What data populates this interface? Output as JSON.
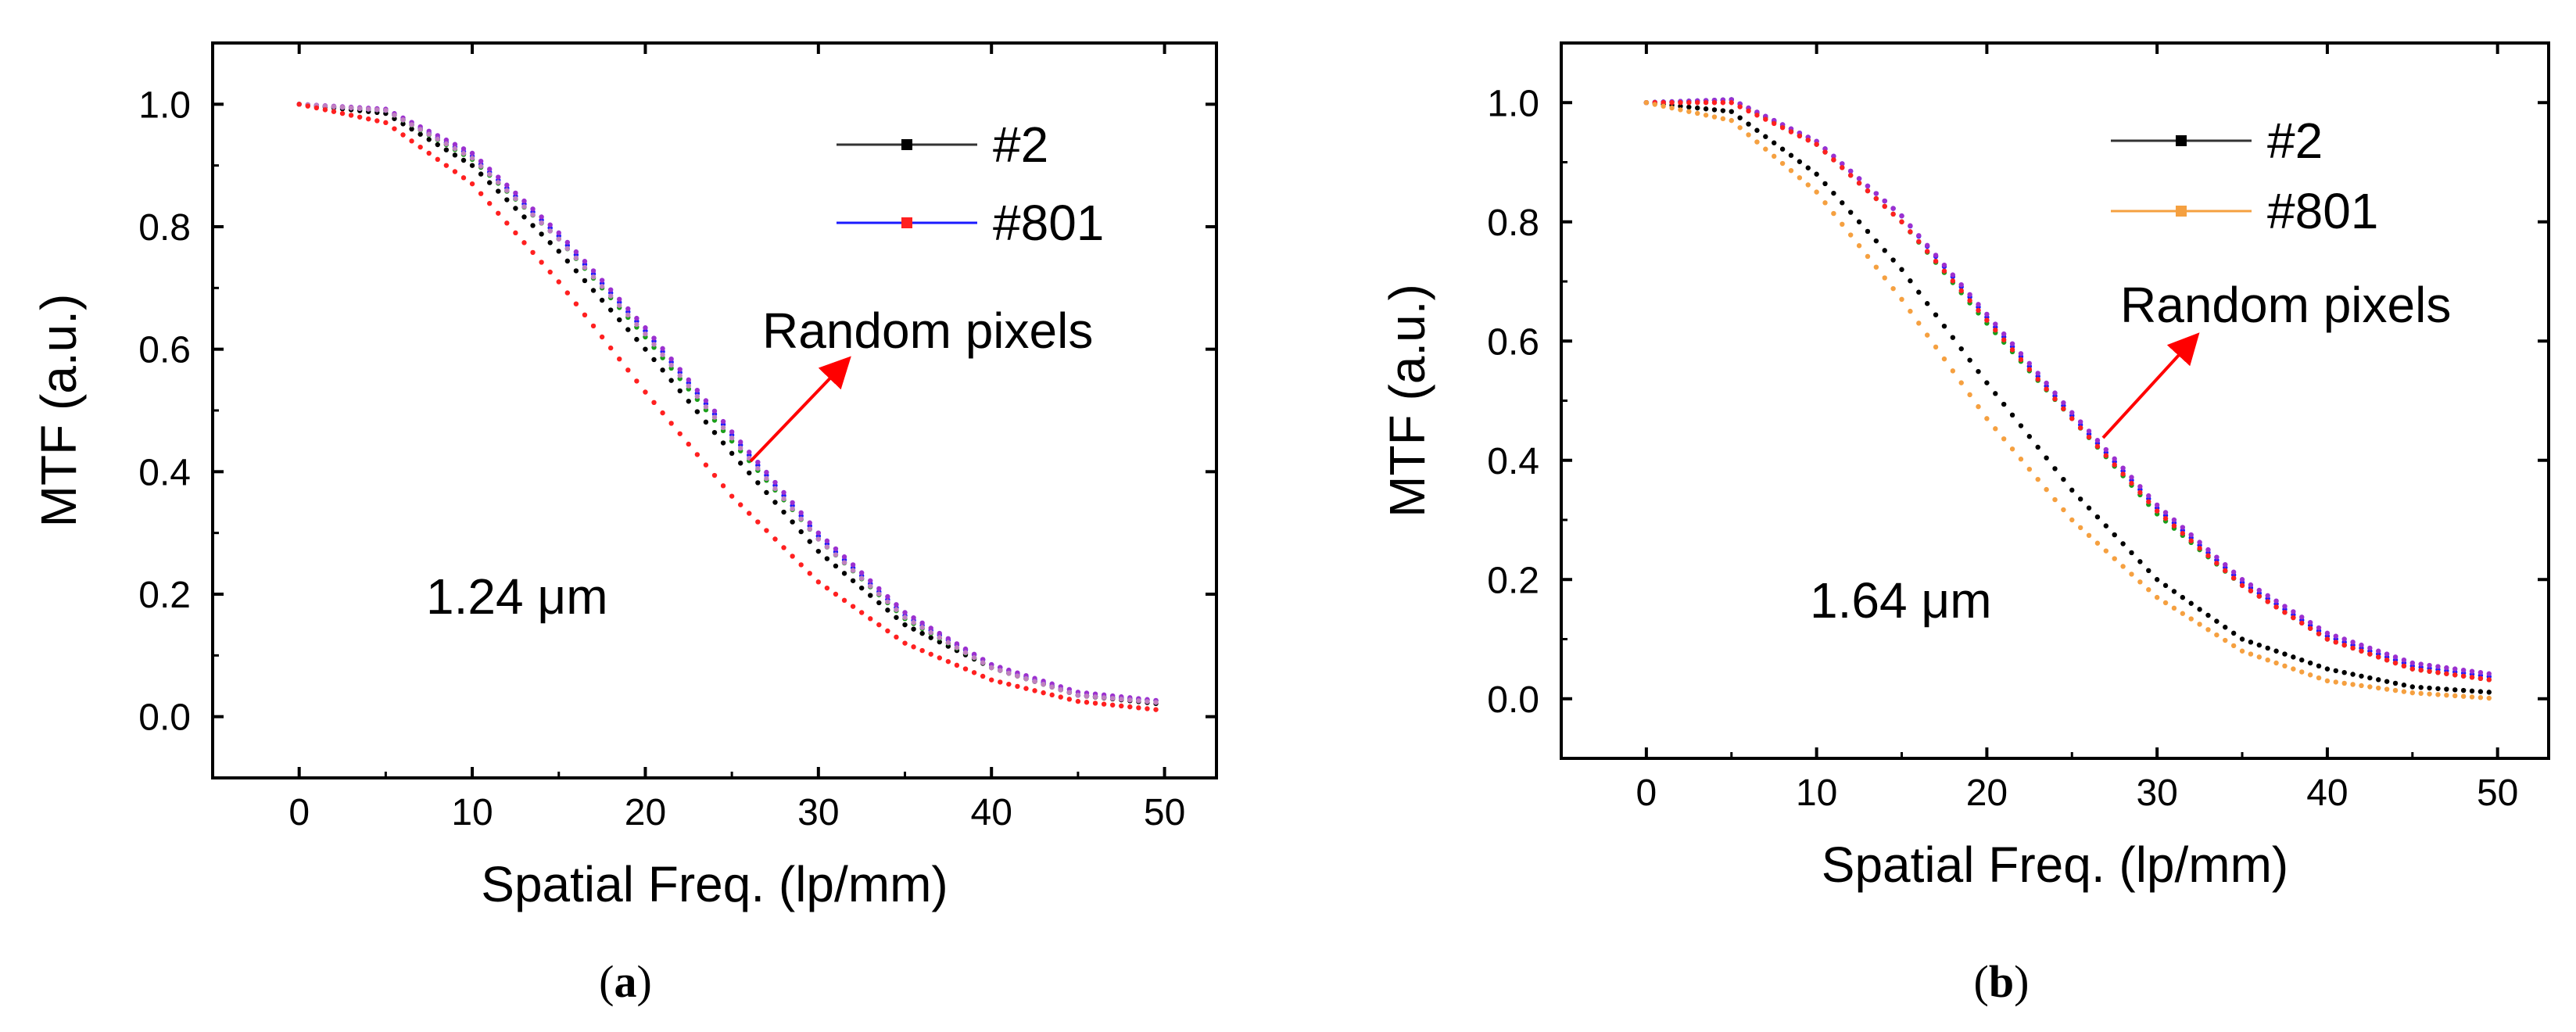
{
  "chart_data": [
    {
      "type": "scatter",
      "panel": "a",
      "caption_prefix": "(",
      "caption_letter": "a",
      "caption_suffix": ")",
      "xlabel": "Spatial Freq. (lp/mm)",
      "ylabel": "MTF (a.u.)",
      "xlim": [
        -5,
        53
      ],
      "ylim": [
        -0.1,
        1.1
      ],
      "xticks": [
        "0",
        "10",
        "20",
        "30",
        "40",
        "50"
      ],
      "yticks": [
        "0.0",
        "0.2",
        "0.4",
        "0.6",
        "0.8",
        "1.0"
      ],
      "grid": false,
      "legend_position": "top-right",
      "legend": [
        {
          "label": "#2",
          "line_color": "#333333",
          "marker_color": "#000000"
        },
        {
          "label": "#801",
          "line_color": "#1a1aff",
          "marker_color": "#ff2020"
        }
      ],
      "annotations": {
        "random_pixels": "Random pixels",
        "size_label": "1.24 μm"
      },
      "arrow_color": "#ff0000",
      "series": [
        {
          "name": "#2",
          "color": "#000000",
          "x": [
            0,
            5,
            10,
            15,
            20,
            25,
            30,
            35,
            40,
            45,
            50
          ],
          "y": [
            1.0,
            0.985,
            0.9,
            0.76,
            0.6,
            0.43,
            0.27,
            0.15,
            0.08,
            0.035,
            0.02
          ]
        },
        {
          "color": "#1a9e1a",
          "x": [
            0,
            5,
            10,
            15,
            20,
            25,
            30,
            35,
            40,
            45,
            50
          ],
          "y": [
            1.0,
            0.99,
            0.91,
            0.78,
            0.62,
            0.45,
            0.29,
            0.16,
            0.08,
            0.035,
            0.025
          ]
        },
        {
          "color": "#1a1aff",
          "x": [
            0,
            5,
            10,
            15,
            20,
            25,
            30,
            35,
            40,
            45,
            50
          ],
          "y": [
            1.0,
            0.99,
            0.915,
            0.785,
            0.63,
            0.46,
            0.295,
            0.165,
            0.085,
            0.035,
            0.025
          ]
        },
        {
          "color": "#9b30d0",
          "x": [
            0,
            5,
            10,
            15,
            20,
            25,
            30,
            35,
            40,
            45,
            50
          ],
          "y": [
            1.0,
            0.992,
            0.92,
            0.79,
            0.635,
            0.465,
            0.3,
            0.17,
            0.085,
            0.04,
            0.025
          ]
        },
        {
          "color": "#c080c0",
          "x": [
            0,
            5,
            10,
            15,
            20,
            25,
            30,
            35,
            40,
            45,
            50
          ],
          "y": [
            1.0,
            0.99,
            0.912,
            0.78,
            0.625,
            0.455,
            0.29,
            0.162,
            0.08,
            0.035,
            0.022
          ]
        },
        {
          "name": "#801",
          "color": "#ff2020",
          "x": [
            0,
            5,
            10,
            15,
            20,
            25,
            30,
            35,
            40,
            45,
            50
          ],
          "y": [
            1.0,
            0.97,
            0.87,
            0.71,
            0.53,
            0.36,
            0.22,
            0.12,
            0.06,
            0.025,
            0.01
          ]
        }
      ]
    },
    {
      "type": "scatter",
      "panel": "b",
      "caption_prefix": "(",
      "caption_letter": "b",
      "caption_suffix": ")",
      "xlabel": "Spatial Freq. (lp/mm)",
      "ylabel": "MTF (a.u.)",
      "xlim": [
        -5,
        53
      ],
      "ylim": [
        -0.1,
        1.1
      ],
      "xticks": [
        "0",
        "10",
        "20",
        "30",
        "40",
        "50"
      ],
      "yticks": [
        "0.0",
        "0.2",
        "0.4",
        "0.6",
        "0.8",
        "1.0"
      ],
      "grid": false,
      "legend_position": "top-right",
      "legend": [
        {
          "label": "#2",
          "line_color": "#333333",
          "marker_color": "#000000"
        },
        {
          "label": "#801",
          "line_color": "#f5a040",
          "marker_color": "#f5a040"
        }
      ],
      "annotations": {
        "random_pixels": "Random pixels",
        "size_label": "1.64 μm"
      },
      "arrow_color": "#ff0000",
      "series": [
        {
          "name": "#2",
          "color": "#000000",
          "x": [
            0,
            5,
            10,
            15,
            20,
            25,
            30,
            35,
            40,
            45,
            50
          ],
          "y": [
            1.0,
            0.985,
            0.88,
            0.72,
            0.53,
            0.35,
            0.2,
            0.1,
            0.05,
            0.02,
            0.01
          ]
        },
        {
          "color": "#1a9e1a",
          "x": [
            0,
            5,
            10,
            15,
            20,
            25,
            30,
            35,
            40,
            45,
            50
          ],
          "y": [
            1.0,
            1.005,
            0.93,
            0.8,
            0.63,
            0.47,
            0.31,
            0.19,
            0.1,
            0.05,
            0.03
          ]
        },
        {
          "color": "#1a1aff",
          "x": [
            0,
            5,
            10,
            15,
            20,
            25,
            30,
            35,
            40,
            45,
            50
          ],
          "y": [
            1.0,
            1.005,
            0.935,
            0.81,
            0.64,
            0.475,
            0.32,
            0.195,
            0.105,
            0.055,
            0.035
          ]
        },
        {
          "color": "#9b30d0",
          "x": [
            0,
            5,
            10,
            15,
            20,
            25,
            30,
            35,
            40,
            45,
            50
          ],
          "y": [
            1.0,
            1.005,
            0.935,
            0.81,
            0.645,
            0.48,
            0.325,
            0.2,
            0.11,
            0.06,
            0.04
          ]
        },
        {
          "color": "#ff2020",
          "x": [
            0,
            5,
            10,
            15,
            20,
            25,
            30,
            35,
            40,
            45,
            50
          ],
          "y": [
            1.0,
            1.0,
            0.93,
            0.8,
            0.635,
            0.47,
            0.315,
            0.19,
            0.1,
            0.05,
            0.03
          ]
        },
        {
          "name": "#801",
          "color": "#f5a040",
          "x": [
            0,
            5,
            10,
            15,
            20,
            25,
            30,
            35,
            40,
            45,
            50
          ],
          "y": [
            1.0,
            0.97,
            0.85,
            0.67,
            0.47,
            0.3,
            0.17,
            0.08,
            0.03,
            0.01,
            0.0
          ]
        }
      ]
    }
  ]
}
